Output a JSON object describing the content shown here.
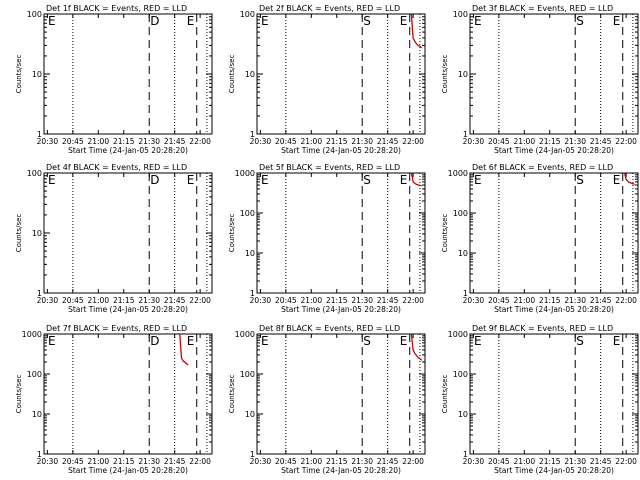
{
  "x_ticks": [
    "20:30",
    "20:45",
    "21:00",
    "21:15",
    "21:30",
    "21:45",
    "22:00"
  ],
  "xlabel": "Start Time (24-Jan-05 20:28:20)",
  "ylabel": "Counts/sec",
  "colors": {
    "events": "#000000",
    "lld": "#cc0000"
  },
  "chart_data": [
    {
      "type": "line",
      "title": "Det 1f BLACK = Events, RED = LLD",
      "ylim": [
        1,
        100
      ],
      "y_ticks": [
        "1",
        "10",
        "100"
      ],
      "markers": [
        "E",
        "D",
        "E"
      ],
      "series": []
    },
    {
      "type": "line",
      "title": "Det 2f BLACK = Events, RED = LLD",
      "ylim": [
        1,
        100
      ],
      "y_ticks": [
        "1",
        "10",
        "100"
      ],
      "markers": [
        "E",
        "S",
        "E"
      ],
      "series": [
        {
          "color": "red",
          "x": [
            "21:59",
            "21:59.5",
            "22:00",
            "22:01",
            "22:02",
            "22:03",
            "22:04",
            "22:05"
          ],
          "values": [
            100,
            60,
            40,
            35,
            32,
            30,
            29,
            27
          ]
        }
      ]
    },
    {
      "type": "line",
      "title": "Det 3f BLACK = Events, RED = LLD",
      "ylim": [
        1,
        100
      ],
      "y_ticks": [
        "1",
        "10",
        "100"
      ],
      "markers": [
        "E",
        "S",
        "E"
      ],
      "series": []
    },
    {
      "type": "line",
      "title": "Det 4f BLACK = Events, RED = LLD",
      "ylim": [
        1,
        100
      ],
      "y_ticks": [
        "1",
        "10",
        "100"
      ],
      "markers": [
        "E",
        "D",
        "E"
      ],
      "series": []
    },
    {
      "type": "line",
      "title": "Det 5f BLACK = Events, RED = LLD",
      "ylim": [
        1,
        1000
      ],
      "y_ticks": [
        "1",
        "10",
        "100",
        "1000"
      ],
      "markers": [
        "E",
        "S",
        "E"
      ],
      "series": [
        {
          "color": "red",
          "x": [
            "21:59",
            "21:59.5",
            "22:00",
            "22:01",
            "22:02",
            "22:03",
            "22:04",
            "22:05"
          ],
          "values": [
            1000,
            800,
            600,
            550,
            520,
            500,
            490,
            480
          ]
        }
      ]
    },
    {
      "type": "line",
      "title": "Det 6f BLACK = Events, RED = LLD",
      "ylim": [
        1,
        1000
      ],
      "y_ticks": [
        "1",
        "10",
        "100",
        "1000"
      ],
      "markers": [
        "E",
        "S",
        "E"
      ],
      "series": [
        {
          "color": "red",
          "x": [
            "21:59",
            "21:59.5",
            "22:00",
            "22:01",
            "22:02",
            "22:03",
            "22:04",
            "22:05"
          ],
          "values": [
            1000,
            850,
            700,
            620,
            580,
            560,
            540,
            520
          ]
        }
      ]
    },
    {
      "type": "line",
      "title": "Det 7f BLACK = Events, RED = LLD",
      "ylim": [
        1,
        1000
      ],
      "y_ticks": [
        "1",
        "10",
        "100",
        "1000"
      ],
      "markers": [
        "E",
        "D",
        "E"
      ],
      "series": [
        {
          "color": "red",
          "x": [
            "21:30",
            "21:30.3"
          ],
          "values": [
            900,
            800
          ]
        },
        {
          "color": "red",
          "x": [
            "21:48",
            "21:48.5",
            "21:49",
            "21:50",
            "21:51",
            "21:52",
            "21:53"
          ],
          "values": [
            1000,
            500,
            250,
            210,
            200,
            180,
            170
          ]
        }
      ]
    },
    {
      "type": "line",
      "title": "Det 8f BLACK = Events, RED = LLD",
      "ylim": [
        1,
        1000
      ],
      "y_ticks": [
        "1",
        "10",
        "100",
        "1000"
      ],
      "markers": [
        "E",
        "S",
        "E"
      ],
      "series": [
        {
          "color": "red",
          "x": [
            "21:59",
            "21:59.5",
            "22:00",
            "22:01",
            "22:02",
            "22:03",
            "22:04",
            "22:05"
          ],
          "values": [
            1000,
            600,
            400,
            330,
            290,
            260,
            240,
            220
          ]
        }
      ]
    },
    {
      "type": "line",
      "title": "Det 9f BLACK = Events, RED = LLD",
      "ylim": [
        1,
        1000
      ],
      "y_ticks": [
        "1",
        "10",
        "100",
        "1000"
      ],
      "markers": [
        "E",
        "S",
        "E"
      ],
      "series": []
    }
  ]
}
